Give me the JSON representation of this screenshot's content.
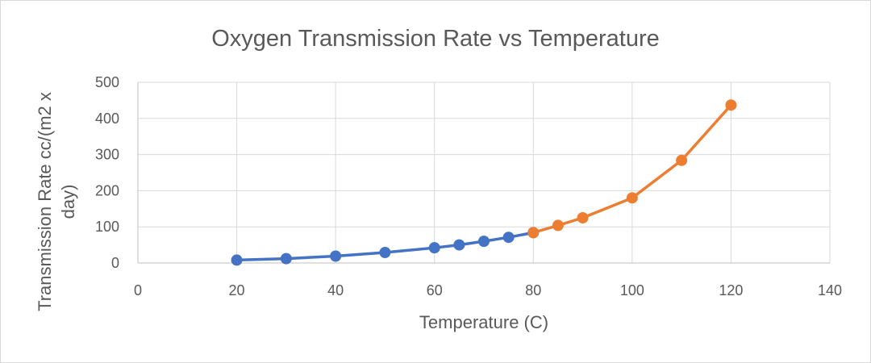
{
  "chart_data": {
    "type": "scatter",
    "title": "Oxygen Transmission Rate vs Temperature",
    "xlabel": "Temperature (C)",
    "ylabel_lines": [
      "Transmission Rate cc/(m2 x",
      "day)"
    ],
    "xlim": [
      0,
      140
    ],
    "ylim": [
      0,
      500
    ],
    "xticks": [
      0,
      20,
      40,
      60,
      80,
      100,
      120,
      140
    ],
    "yticks": [
      0,
      100,
      200,
      300,
      400,
      500
    ],
    "grid": true,
    "legend": "none",
    "series": [
      {
        "color": "#4472c4",
        "x": [
          20,
          30,
          40,
          50,
          60,
          65,
          70,
          75,
          80
        ],
        "y": [
          8,
          12,
          19,
          29,
          42,
          50,
          60,
          71,
          84
        ]
      },
      {
        "color": "#ed7d31",
        "x": [
          80,
          85,
          90,
          100,
          110,
          120
        ],
        "y": [
          84,
          104,
          125,
          180,
          284,
          437
        ]
      }
    ]
  }
}
